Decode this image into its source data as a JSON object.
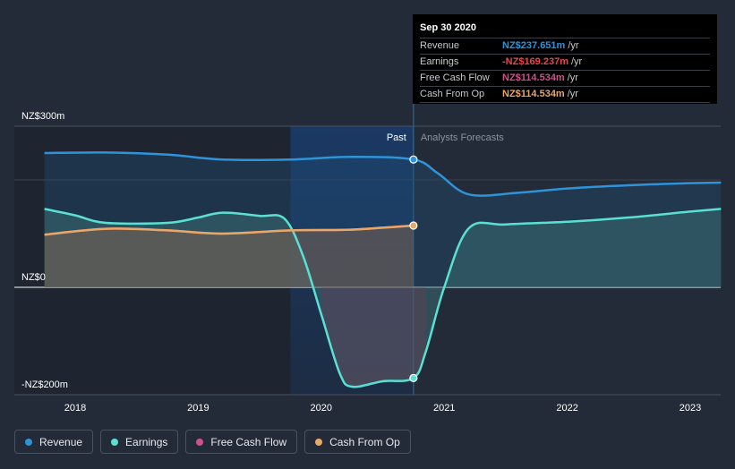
{
  "colors": {
    "revenue": "#2e93d9",
    "earnings": "#5ae0d3",
    "free_cash_flow": "#d14f8c",
    "cash_from_op": "#e8a866",
    "background": "#232b38"
  },
  "tooltip": {
    "date": "Sep 30 2020",
    "rows": [
      {
        "label": "Revenue",
        "value": "NZ$237.651m",
        "unit": "/yr",
        "color": "#2e93d9"
      },
      {
        "label": "Earnings",
        "value": "-NZ$169.237m",
        "unit": "/yr",
        "color": "#e8474b"
      },
      {
        "label": "Free Cash Flow",
        "value": "NZ$114.534m",
        "unit": "/yr",
        "color": "#d14f8c"
      },
      {
        "label": "Cash From Op",
        "value": "NZ$114.534m",
        "unit": "/yr",
        "color": "#e8a866"
      }
    ]
  },
  "legend": [
    {
      "label": "Revenue",
      "color": "#2e93d9"
    },
    {
      "label": "Earnings",
      "color": "#5ae0d3"
    },
    {
      "label": "Free Cash Flow",
      "color": "#d14f8c"
    },
    {
      "label": "Cash From Op",
      "color": "#e8a866"
    }
  ],
  "chart_data": {
    "type": "line",
    "y_unit": "NZ$ millions",
    "ylim": [
      -200,
      300
    ],
    "y_tick_labels": [
      {
        "value": 300,
        "label": "NZ$300m"
      },
      {
        "value": 0,
        "label": "NZ$0"
      },
      {
        "value": -200,
        "label": "-NZ$200m"
      }
    ],
    "xlim": [
      2017.75,
      2023.25
    ],
    "x_ticks": [
      2018,
      2019,
      2020,
      2021,
      2022,
      2023
    ],
    "x_tick_labels": [
      "2018",
      "2019",
      "2020",
      "2021",
      "2022",
      "2023"
    ],
    "past_label": "Past",
    "forecast_label": "Analysts Forecasts",
    "divider_x": 2020.75,
    "highlight_start_x": 2019.75,
    "series": [
      {
        "name": "Revenue",
        "key": "revenue",
        "points": [
          [
            2017.75,
            250
          ],
          [
            2018.25,
            251
          ],
          [
            2018.75,
            247
          ],
          [
            2019.2,
            238
          ],
          [
            2019.75,
            238
          ],
          [
            2020.25,
            243
          ],
          [
            2020.75,
            238
          ],
          [
            2020.95,
            212
          ],
          [
            2021.2,
            173
          ],
          [
            2021.6,
            176
          ],
          [
            2022,
            184
          ],
          [
            2022.5,
            190
          ],
          [
            2023,
            194
          ],
          [
            2023.25,
            195
          ]
        ]
      },
      {
        "name": "Earnings",
        "key": "earnings",
        "points": [
          [
            2017.75,
            146
          ],
          [
            2018,
            134
          ],
          [
            2018.25,
            120
          ],
          [
            2018.75,
            120
          ],
          [
            2019,
            130
          ],
          [
            2019.2,
            139
          ],
          [
            2019.5,
            133
          ],
          [
            2019.7,
            128
          ],
          [
            2019.85,
            60
          ],
          [
            2020,
            -50
          ],
          [
            2020.15,
            -160
          ],
          [
            2020.25,
            -185
          ],
          [
            2020.5,
            -175
          ],
          [
            2020.75,
            -169
          ],
          [
            2020.85,
            -120
          ],
          [
            2021,
            0
          ],
          [
            2021.2,
            110
          ],
          [
            2021.5,
            117
          ],
          [
            2022,
            122
          ],
          [
            2022.5,
            130
          ],
          [
            2023,
            141
          ],
          [
            2023.25,
            146
          ]
        ]
      },
      {
        "name": "Free Cash Flow",
        "key": "free_cash_flow",
        "points": [
          [
            2017.75,
            98
          ],
          [
            2018.25,
            109
          ],
          [
            2018.75,
            106
          ],
          [
            2019.2,
            100
          ],
          [
            2019.75,
            106
          ],
          [
            2020.2,
            107
          ],
          [
            2020.5,
            111
          ],
          [
            2020.75,
            115
          ]
        ]
      },
      {
        "name": "Cash From Op",
        "key": "cash_from_op",
        "points": [
          [
            2017.75,
            98
          ],
          [
            2018.25,
            109
          ],
          [
            2018.75,
            106
          ],
          [
            2019.2,
            100
          ],
          [
            2019.75,
            106
          ],
          [
            2020.2,
            107
          ],
          [
            2020.5,
            111
          ],
          [
            2020.75,
            115
          ]
        ]
      }
    ],
    "markers": [
      {
        "series": "revenue",
        "x": 2020.75,
        "y": 238
      },
      {
        "series": "cash_from_op",
        "x": 2020.75,
        "y": 115
      },
      {
        "series": "earnings",
        "x": 2020.75,
        "y": -169
      }
    ]
  }
}
